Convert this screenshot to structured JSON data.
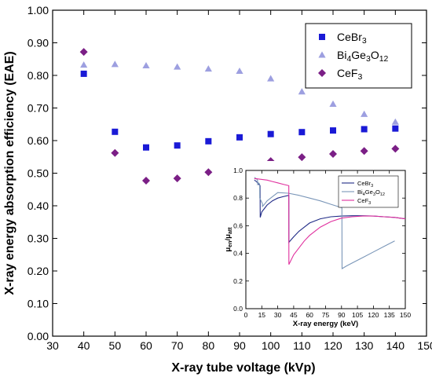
{
  "chart_data": [
    {
      "type": "scatter",
      "title": "",
      "xlabel": "X-ray tube voltage (kVp)",
      "ylabel": "X-ray energy absorption efficiency (EAE)",
      "xlim": [
        30,
        150
      ],
      "ylim": [
        0,
        1
      ],
      "xticks": [
        30,
        40,
        50,
        60,
        70,
        80,
        90,
        100,
        110,
        120,
        130,
        140,
        150
      ],
      "yticks": [
        0,
        0.1,
        0.2,
        0.3,
        0.4,
        0.5,
        0.6,
        0.7,
        0.8,
        0.9,
        1.0
      ],
      "x_tick_labels": [
        "30",
        "40",
        "50",
        "60",
        "70",
        "80",
        "90",
        "100",
        "110",
        "120",
        "130",
        "140",
        "150"
      ],
      "y_tick_labels": [
        "0.00",
        "0.10",
        "0.20",
        "0.30",
        "0.40",
        "0.50",
        "0.60",
        "0.70",
        "0.80",
        "0.90",
        "1.00"
      ],
      "grid": false,
      "legend_position": "top-right",
      "series": [
        {
          "name_parts": [
            {
              "t": "CeBr"
            },
            {
              "t": "3",
              "sub": true
            }
          ],
          "marker": "square",
          "color": "#1a1ad6",
          "x": [
            40,
            50,
            60,
            70,
            80,
            90,
            100,
            110,
            120,
            130,
            140
          ],
          "y": [
            0.805,
            0.627,
            0.579,
            0.585,
            0.598,
            0.61,
            0.62,
            0.626,
            0.631,
            0.635,
            0.637
          ]
        },
        {
          "name_parts": [
            {
              "t": "Bi"
            },
            {
              "t": "4",
              "sub": true
            },
            {
              "t": "Ge"
            },
            {
              "t": "3",
              "sub": true
            },
            {
              "t": "O"
            },
            {
              "t": "12",
              "sub": true
            }
          ],
          "marker": "triangle",
          "color": "#9d9fe0",
          "x": [
            40,
            50,
            60,
            70,
            80,
            90,
            100,
            110,
            120,
            130,
            140
          ],
          "y": [
            0.832,
            0.834,
            0.83,
            0.826,
            0.82,
            0.813,
            0.79,
            0.75,
            0.712,
            0.681,
            0.657
          ]
        },
        {
          "name_parts": [
            {
              "t": "CeF"
            },
            {
              "t": "3",
              "sub": true
            }
          ],
          "marker": "diamond",
          "color": "#7b1f86",
          "x": [
            40,
            50,
            60,
            70,
            80,
            90,
            100,
            110,
            120,
            130,
            140
          ],
          "y": [
            0.872,
            0.562,
            0.477,
            0.484,
            0.503,
            0.52,
            0.537,
            0.549,
            0.559,
            0.568,
            0.575
          ]
        }
      ]
    },
    {
      "type": "line",
      "title": "",
      "xlabel": "X-ray energy (keV)",
      "ylabel_parts": [
        {
          "t": "μ"
        },
        {
          "t": "en",
          "sub": true
        },
        {
          "t": "/μ"
        },
        {
          "t": "att",
          "sub": true
        }
      ],
      "xlim": [
        0,
        150
      ],
      "ylim": [
        0,
        1
      ],
      "xticks": [
        0,
        15,
        30,
        45,
        60,
        75,
        90,
        105,
        120,
        135,
        150
      ],
      "yticks": [
        0,
        0.2,
        0.4,
        0.6,
        0.8,
        1.0
      ],
      "x_tick_labels": [
        "0",
        "15",
        "30",
        "45",
        "60",
        "75",
        "90",
        "105",
        "120",
        "135",
        "150"
      ],
      "y_tick_labels": [
        "0.0",
        "0.2",
        "0.4",
        "0.6",
        "0.8",
        "1.0"
      ],
      "grid": false,
      "legend_position": "top-right",
      "series": [
        {
          "name_parts": [
            {
              "t": "CeBr"
            },
            {
              "t": "3",
              "sub": true
            }
          ],
          "color": "#1f2a86",
          "x": [
            8,
            10,
            12,
            13.4,
            13.5,
            15,
            18,
            20,
            25,
            30,
            35,
            40.4,
            40.5,
            45,
            50,
            55,
            60,
            70,
            80,
            90,
            100,
            110,
            120,
            130,
            140,
            150
          ],
          "y": [
            0.93,
            0.92,
            0.9,
            0.89,
            0.66,
            0.7,
            0.73,
            0.75,
            0.78,
            0.8,
            0.81,
            0.82,
            0.48,
            0.52,
            0.56,
            0.59,
            0.62,
            0.65,
            0.665,
            0.67,
            0.672,
            0.672,
            0.67,
            0.665,
            0.66,
            0.65
          ]
        },
        {
          "name_parts": [
            {
              "t": "Bi"
            },
            {
              "t": "4",
              "sub": true
            },
            {
              "t": "Ge"
            },
            {
              "t": "3",
              "sub": true
            },
            {
              "t": "O"
            },
            {
              "t": "12",
              "sub": true
            }
          ],
          "color": "#7a96b8",
          "x": [
            8,
            10,
            11.0,
            11.1,
            12,
            13.0,
            13.1,
            15.6,
            15.7,
            18,
            20,
            25,
            30,
            40,
            50,
            60,
            70,
            80,
            90.4,
            90.5,
            95,
            100,
            110,
            120,
            130,
            140
          ],
          "y": [
            0.95,
            0.94,
            0.93,
            0.9,
            0.91,
            0.9,
            0.8,
            0.76,
            0.74,
            0.76,
            0.78,
            0.81,
            0.84,
            0.835,
            0.82,
            0.8,
            0.78,
            0.755,
            0.73,
            0.29,
            0.31,
            0.33,
            0.37,
            0.41,
            0.45,
            0.49
          ]
        },
        {
          "name_parts": [
            {
              "t": "CeF"
            },
            {
              "t": "3",
              "sub": true
            }
          ],
          "color": "#e0309e",
          "x": [
            8,
            10,
            15,
            20,
            25,
            30,
            35,
            40.4,
            40.5,
            45,
            50,
            55,
            60,
            70,
            80,
            90,
            100,
            110,
            120,
            130,
            140,
            150
          ],
          "y": [
            0.94,
            0.94,
            0.935,
            0.93,
            0.92,
            0.91,
            0.9,
            0.89,
            0.32,
            0.39,
            0.44,
            0.49,
            0.53,
            0.59,
            0.63,
            0.655,
            0.665,
            0.67,
            0.67,
            0.665,
            0.66,
            0.65
          ]
        }
      ]
    }
  ]
}
